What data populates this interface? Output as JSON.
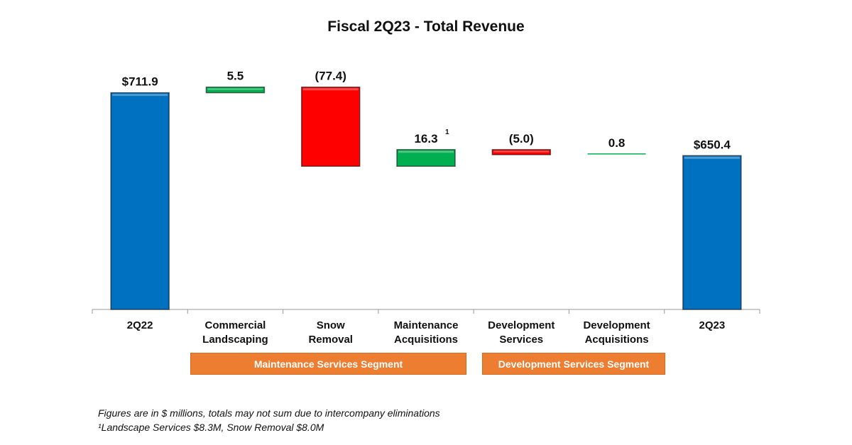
{
  "chart_data": {
    "type": "waterfall",
    "title": "Fiscal 2Q23 - Total Revenue",
    "categories": [
      "2Q22",
      "Commercial Landscaping",
      "Snow Removal",
      "Maintenance Acquisitions",
      "Development Services",
      "Development Acquisitions",
      "2Q23"
    ],
    "category_lines": [
      [
        "2Q22"
      ],
      [
        "Commercial",
        "Landscaping"
      ],
      [
        "Snow",
        "Removal"
      ],
      [
        "Maintenance",
        "Acquisitions"
      ],
      [
        "Development",
        "Services"
      ],
      [
        "Development",
        "Acquisitions"
      ],
      [
        "2Q23"
      ]
    ],
    "values": [
      711.9,
      5.5,
      -77.4,
      16.3,
      -5.0,
      0.8,
      650.4
    ],
    "kinds": [
      "total",
      "delta",
      "delta",
      "delta",
      "delta",
      "delta",
      "total"
    ],
    "data_labels": [
      "$711.9",
      "5.5",
      "(77.4)",
      "16.3",
      "(5.0)",
      "0.8",
      "$650.4"
    ],
    "label_superscripts": [
      "",
      "",
      "",
      "1",
      "",
      "",
      ""
    ],
    "ylim": [
      500,
      720
    ],
    "grid": false,
    "colors": {
      "total": "#0070C0",
      "increase": "#00B050",
      "decrease": "#FF0000"
    }
  },
  "segments": [
    {
      "label": "Maintenance Services Segment"
    },
    {
      "label": "Development Services Segment"
    }
  ],
  "footnotes": [
    "Figures are in $ millions, totals may not sum due to intercompany eliminations",
    "¹Landscape Services $8.3M, Snow Removal $8.0M"
  ],
  "segment_color": "#ED7D31"
}
